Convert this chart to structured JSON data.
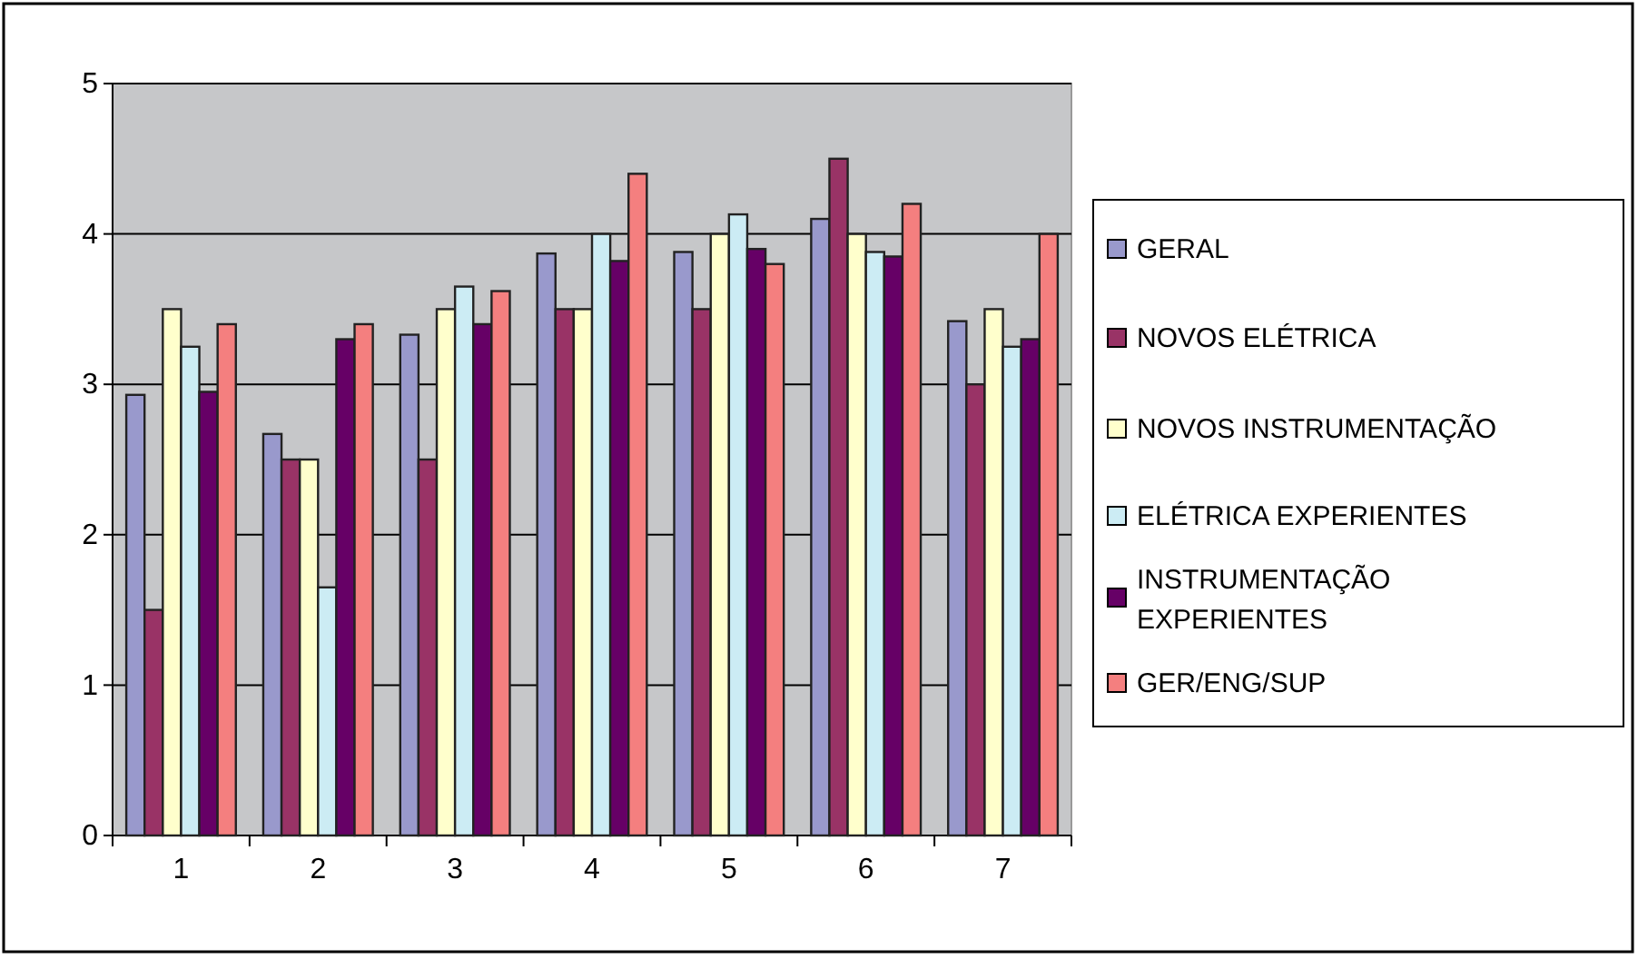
{
  "chart_data": {
    "type": "bar",
    "categories": [
      "1",
      "2",
      "3",
      "4",
      "5",
      "6",
      "7"
    ],
    "series": [
      {
        "name": "GERAL",
        "color": "#9999cc",
        "values": [
          2.93,
          2.67,
          3.33,
          3.87,
          3.88,
          4.1,
          3.42
        ]
      },
      {
        "name": "NOVOS ELÉTRICA",
        "color": "#993366",
        "values": [
          1.5,
          2.5,
          2.5,
          3.5,
          3.5,
          4.5,
          3.0
        ]
      },
      {
        "name": "NOVOS INSTRUMENTAÇÃO",
        "color": "#ffffcc",
        "values": [
          3.5,
          2.5,
          3.5,
          3.5,
          4.0,
          4.0,
          3.5
        ]
      },
      {
        "name": "ELÉTRICA EXPERIENTES",
        "color": "#ccecf4",
        "values": [
          3.25,
          1.65,
          3.65,
          4.0,
          4.13,
          3.88,
          3.25
        ]
      },
      {
        "name": "INSTRUMENTAÇÃO EXPERIENTES",
        "color": "#660066",
        "values": [
          2.95,
          3.3,
          3.4,
          3.82,
          3.9,
          3.85,
          3.3
        ]
      },
      {
        "name": "GER/ENG/SUP",
        "color": "#f47f7f",
        "values": [
          3.4,
          3.4,
          3.62,
          4.4,
          3.8,
          4.2,
          4.0
        ]
      }
    ],
    "ylim": [
      0,
      5
    ],
    "yticks": [
      0,
      1,
      2,
      3,
      4,
      5
    ],
    "grid": "y",
    "legend": "right"
  }
}
